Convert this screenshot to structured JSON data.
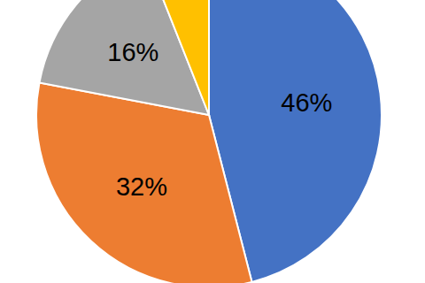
{
  "chart_data": {
    "type": "pie",
    "values": [
      46,
      32,
      16,
      6
    ],
    "value_labels": [
      "46%",
      "32%",
      "16%",
      null
    ],
    "colors": [
      "#4472c4",
      "#ed7d31",
      "#a5a5a5",
      "#ffc000"
    ],
    "data_labels": true
  }
}
